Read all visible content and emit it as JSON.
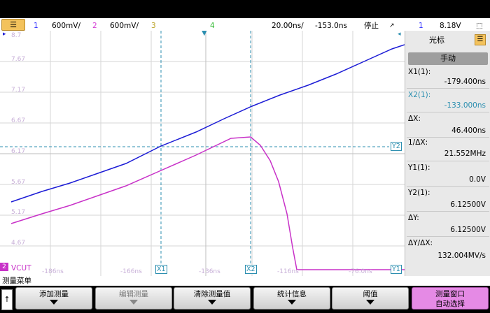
{
  "topbar": {
    "menu_icon": "menu-icon",
    "ch1_num": "1",
    "ch1_scale": "600mV/",
    "ch2_num": "2",
    "ch2_scale": "600mV/",
    "ch3_num": "3",
    "ch4_num": "4",
    "timebase": "20.00ns/",
    "delay": "-153.0ns",
    "run_status": "停止",
    "trig_num": "1",
    "trig_level": "8.18V"
  },
  "screen": {
    "y_labels": [
      "8.7",
      "7.67",
      "7.17",
      "6.67",
      "6.17",
      "5.67",
      "5.17",
      "4.67"
    ],
    "bottom_labels": [
      "-186ns",
      "-166ns",
      "-136ns",
      "-116ns",
      "-76.0ns"
    ],
    "ch2_marker": "2",
    "ch2_name": "VCUT",
    "x1": "X1",
    "x2": "X2",
    "y1": "Y1",
    "y2": "Y2"
  },
  "side": {
    "title": "光标",
    "mode": "手动",
    "x1_label": "X1(1):",
    "x1_val": "-179.400ns",
    "x2_label": "X2(1):",
    "x2_val": "-133.000ns",
    "dx_label": "ΔX:",
    "dx_val": "46.400ns",
    "inv_label": "1/ΔX:",
    "inv_val": "21.552MHz",
    "y1_label": "Y1(1):",
    "y1_val": "0.0V",
    "y2_label": "Y2(1):",
    "y2_val": "6.12500V",
    "dy_label": "ΔY:",
    "dy_val": "6.12500V",
    "ratio_label": "ΔY/ΔX:",
    "ratio_val": "132.004MV/s"
  },
  "bottom": {
    "menu_title": "测量菜单",
    "back": "↑",
    "add": "添加测量",
    "edit": "编辑测量",
    "clear": "清除测量值",
    "stats": "统计信息",
    "threshold": "阈值",
    "window_1": "测量窗口",
    "window_2": "自动选择"
  }
}
